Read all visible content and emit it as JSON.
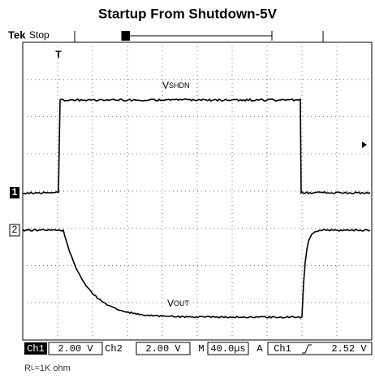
{
  "title": "Startup From Shutdown-5V",
  "header": {
    "brand": "Tek",
    "state": "Stop",
    "trigger_marker": "T"
  },
  "traces": {
    "vshdn": {
      "main": "V",
      "sub": "SHDN"
    },
    "vout": {
      "main": "V",
      "sub": "OUT"
    }
  },
  "channel_markers": [
    "1",
    "2"
  ],
  "status_bar": {
    "ch1": "Ch1",
    "ch1_scale": "2.00 V",
    "ch2": "Ch2",
    "ch2_scale": "2.00 V",
    "m": "M",
    "timebase": "40.0µs",
    "a": "A",
    "trig_source": "Ch1",
    "trig_level": "2.52 V"
  },
  "footer": {
    "main": "R",
    "sub": "L",
    "rest": "=1K ohm"
  }
}
